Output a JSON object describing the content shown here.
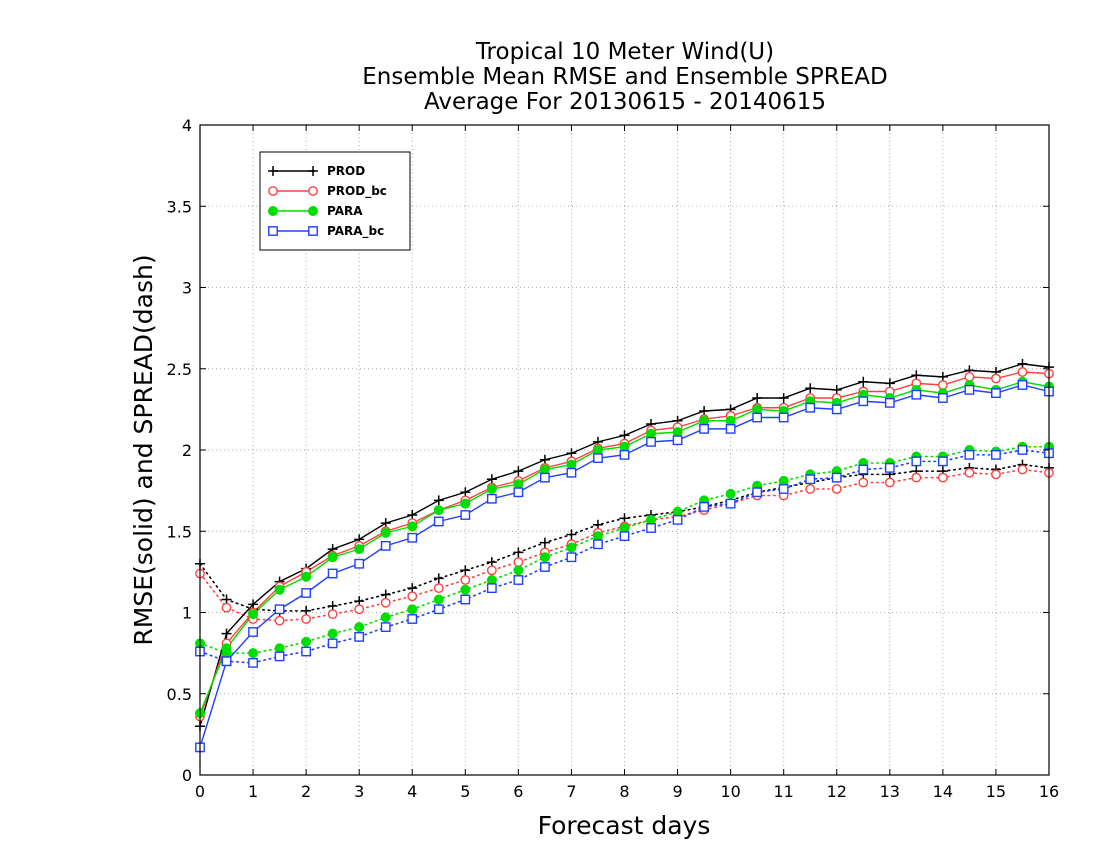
{
  "chart_data": {
    "type": "line",
    "title": [
      "Tropical 10 Meter Wind(U)",
      "Ensemble Mean RMSE and Ensemble SPREAD",
      "Average For 20130615 - 20140615"
    ],
    "xlabel": "Forecast days",
    "ylabel": "RMSE(solid) and SPREAD(dash)",
    "xlim": [
      0,
      16
    ],
    "ylim": [
      0,
      4
    ],
    "xticks": [
      0,
      1,
      2,
      3,
      4,
      5,
      6,
      7,
      8,
      9,
      10,
      11,
      12,
      13,
      14,
      15,
      16
    ],
    "yticks": [
      0,
      0.5,
      1,
      1.5,
      2,
      2.5,
      3,
      3.5,
      4
    ],
    "ytick_labels": [
      "0",
      "0.5",
      "1",
      "1.5",
      "2",
      "2.5",
      "3",
      "3.5",
      "4"
    ],
    "grid": true,
    "legend_position": "top-left",
    "x": [
      0,
      0.5,
      1,
      1.5,
      2,
      2.5,
      3,
      3.5,
      4,
      4.5,
      5,
      5.5,
      6,
      6.5,
      7,
      7.5,
      8,
      8.5,
      9,
      9.5,
      10,
      10.5,
      11,
      11.5,
      12,
      12.5,
      13,
      13.5,
      14,
      14.5,
      15,
      15.5,
      16
    ],
    "series": [
      {
        "name": "PROD",
        "color": "#000000",
        "marker": "plus",
        "rmse": [
          0.3,
          0.87,
          1.05,
          1.19,
          1.27,
          1.39,
          1.45,
          1.55,
          1.6,
          1.69,
          1.74,
          1.82,
          1.87,
          1.94,
          1.98,
          2.05,
          2.09,
          2.16,
          2.18,
          2.24,
          2.25,
          2.32,
          2.32,
          2.38,
          2.37,
          2.42,
          2.41,
          2.46,
          2.45,
          2.49,
          2.48,
          2.53,
          2.51
        ],
        "spread": [
          1.3,
          1.08,
          1.02,
          1.01,
          1.01,
          1.04,
          1.07,
          1.11,
          1.15,
          1.21,
          1.26,
          1.31,
          1.37,
          1.43,
          1.48,
          1.54,
          1.58,
          1.6,
          1.62,
          1.65,
          1.69,
          1.74,
          1.77,
          1.8,
          1.83,
          1.85,
          1.85,
          1.87,
          1.87,
          1.89,
          1.88,
          1.91,
          1.89
        ]
      },
      {
        "name": "PROD_bc",
        "color": "#ff4040",
        "marker": "circle",
        "rmse": [
          0.36,
          0.81,
          1.0,
          1.16,
          1.25,
          1.35,
          1.41,
          1.5,
          1.55,
          1.63,
          1.69,
          1.77,
          1.81,
          1.89,
          1.93,
          2.01,
          2.04,
          2.12,
          2.14,
          2.19,
          2.21,
          2.26,
          2.26,
          2.32,
          2.32,
          2.36,
          2.36,
          2.41,
          2.4,
          2.45,
          2.44,
          2.48,
          2.47
        ],
        "spread": [
          1.24,
          1.03,
          0.96,
          0.95,
          0.96,
          0.99,
          1.02,
          1.06,
          1.1,
          1.15,
          1.2,
          1.26,
          1.31,
          1.37,
          1.42,
          1.49,
          1.53,
          1.57,
          1.59,
          1.63,
          1.67,
          1.72,
          1.72,
          1.76,
          1.76,
          1.8,
          1.8,
          1.83,
          1.83,
          1.86,
          1.85,
          1.88,
          1.86
        ]
      },
      {
        "name": "PARA",
        "color": "#00dd00",
        "marker": "filled-circle",
        "rmse": [
          0.38,
          0.78,
          0.99,
          1.14,
          1.22,
          1.34,
          1.39,
          1.49,
          1.53,
          1.63,
          1.67,
          1.76,
          1.79,
          1.88,
          1.91,
          2.0,
          2.02,
          2.1,
          2.11,
          2.18,
          2.18,
          2.25,
          2.24,
          2.3,
          2.29,
          2.34,
          2.32,
          2.37,
          2.35,
          2.4,
          2.37,
          2.42,
          2.39
        ],
        "spread": [
          0.81,
          0.75,
          0.75,
          0.78,
          0.82,
          0.87,
          0.91,
          0.97,
          1.02,
          1.08,
          1.14,
          1.2,
          1.26,
          1.34,
          1.4,
          1.47,
          1.52,
          1.57,
          1.62,
          1.69,
          1.73,
          1.78,
          1.81,
          1.85,
          1.87,
          1.92,
          1.92,
          1.96,
          1.96,
          2.0,
          1.99,
          2.02,
          2.02
        ]
      },
      {
        "name": "PARA_bc",
        "color": "#2040ff",
        "marker": "square",
        "rmse": [
          0.17,
          0.7,
          0.88,
          1.02,
          1.12,
          1.24,
          1.3,
          1.41,
          1.46,
          1.56,
          1.6,
          1.7,
          1.74,
          1.83,
          1.86,
          1.95,
          1.97,
          2.05,
          2.06,
          2.13,
          2.13,
          2.2,
          2.2,
          2.26,
          2.25,
          2.3,
          2.29,
          2.34,
          2.32,
          2.37,
          2.35,
          2.4,
          2.36
        ],
        "spread": [
          0.76,
          0.7,
          0.69,
          0.73,
          0.76,
          0.81,
          0.85,
          0.91,
          0.96,
          1.02,
          1.08,
          1.15,
          1.2,
          1.28,
          1.34,
          1.42,
          1.47,
          1.52,
          1.57,
          1.65,
          1.67,
          1.74,
          1.76,
          1.82,
          1.83,
          1.88,
          1.89,
          1.93,
          1.93,
          1.97,
          1.97,
          2.0,
          1.98
        ]
      }
    ]
  }
}
